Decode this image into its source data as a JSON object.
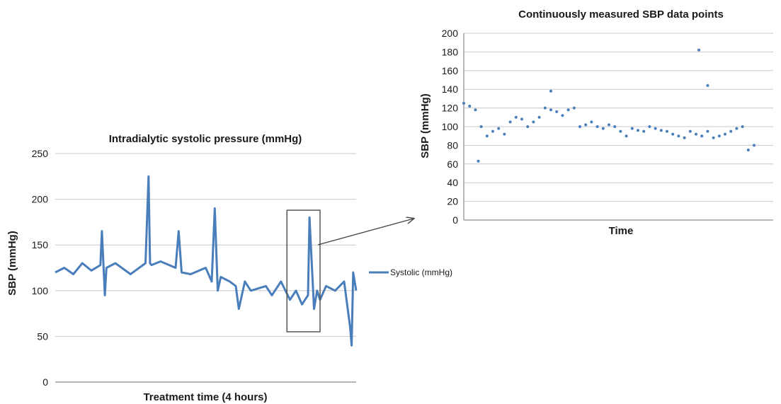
{
  "colors": {
    "series": "#4a7ebb",
    "grid": "#c8c8c8",
    "axis": "#8c8c8c",
    "box": "#555555",
    "arrow": "#444444"
  },
  "chart_data": [
    {
      "type": "line",
      "title": "Intradialytic systolic pressure (mmHg)",
      "xlabel": "Treatment time (4 hours)",
      "ylabel": "SBP (mmHg)",
      "ylim": [
        0,
        250
      ],
      "yticks": [
        "0",
        "50",
        "100",
        "150",
        "200",
        "250"
      ],
      "grid": true,
      "legend": {
        "position": "right",
        "entries": [
          "Systolic (mmHg)"
        ]
      },
      "series": [
        {
          "name": "Systolic (mmHg)",
          "x_fraction": [
            0.0,
            0.03,
            0.06,
            0.09,
            0.12,
            0.15,
            0.155,
            0.165,
            0.17,
            0.2,
            0.25,
            0.3,
            0.31,
            0.315,
            0.32,
            0.35,
            0.4,
            0.41,
            0.42,
            0.45,
            0.5,
            0.52,
            0.53,
            0.54,
            0.55,
            0.58,
            0.6,
            0.61,
            0.63,
            0.65,
            0.7,
            0.72,
            0.75,
            0.78,
            0.8,
            0.82,
            0.84,
            0.845,
            0.86,
            0.87,
            0.88,
            0.9,
            0.93,
            0.96,
            0.98,
            0.985,
            0.99,
            1.0
          ],
          "values": [
            120,
            125,
            118,
            130,
            122,
            128,
            165,
            95,
            125,
            130,
            118,
            130,
            225,
            130,
            128,
            132,
            125,
            165,
            120,
            118,
            125,
            110,
            190,
            100,
            115,
            110,
            105,
            80,
            110,
            100,
            105,
            95,
            110,
            90,
            100,
            85,
            95,
            180,
            80,
            100,
            90,
            105,
            100,
            110,
            60,
            40,
            120,
            100
          ]
        }
      ],
      "highlight": {
        "x_start_fraction": 0.77,
        "x_end_fraction": 0.88,
        "y_range": [
          55,
          188
        ]
      }
    },
    {
      "type": "scatter",
      "title": "Continuously measured SBP data points",
      "xlabel": "Time",
      "ylabel": "SBP (mmHg)",
      "ylim": [
        0,
        200
      ],
      "yticks": [
        "0",
        "20",
        "40",
        "60",
        "80",
        "100",
        "120",
        "140",
        "160",
        "180",
        "200"
      ],
      "grid": true,
      "series": [
        {
          "name": "",
          "x_fraction": [
            0.0,
            0.02,
            0.04,
            0.06,
            0.08,
            0.1,
            0.12,
            0.14,
            0.16,
            0.18,
            0.2,
            0.22,
            0.24,
            0.26,
            0.28,
            0.3,
            0.32,
            0.34,
            0.36,
            0.38,
            0.4,
            0.42,
            0.44,
            0.46,
            0.48,
            0.5,
            0.52,
            0.54,
            0.56,
            0.58,
            0.6,
            0.62,
            0.64,
            0.66,
            0.68,
            0.7,
            0.72,
            0.74,
            0.76,
            0.78,
            0.8,
            0.82,
            0.84,
            0.86,
            0.88,
            0.9,
            0.92,
            0.94,
            0.96,
            0.98,
            1.0,
            0.81,
            0.84,
            0.05,
            0.3
          ],
          "values": [
            125,
            122,
            118,
            100,
            90,
            95,
            98,
            92,
            105,
            110,
            108,
            100,
            105,
            110,
            120,
            118,
            116,
            112,
            118,
            120,
            100,
            102,
            105,
            100,
            98,
            102,
            100,
            95,
            90,
            98,
            96,
            95,
            100,
            98,
            96,
            95,
            92,
            90,
            88,
            95,
            92,
            90,
            95,
            88,
            90,
            92,
            95,
            98,
            100,
            75,
            80,
            182,
            144,
            63,
            138
          ]
        }
      ]
    }
  ]
}
